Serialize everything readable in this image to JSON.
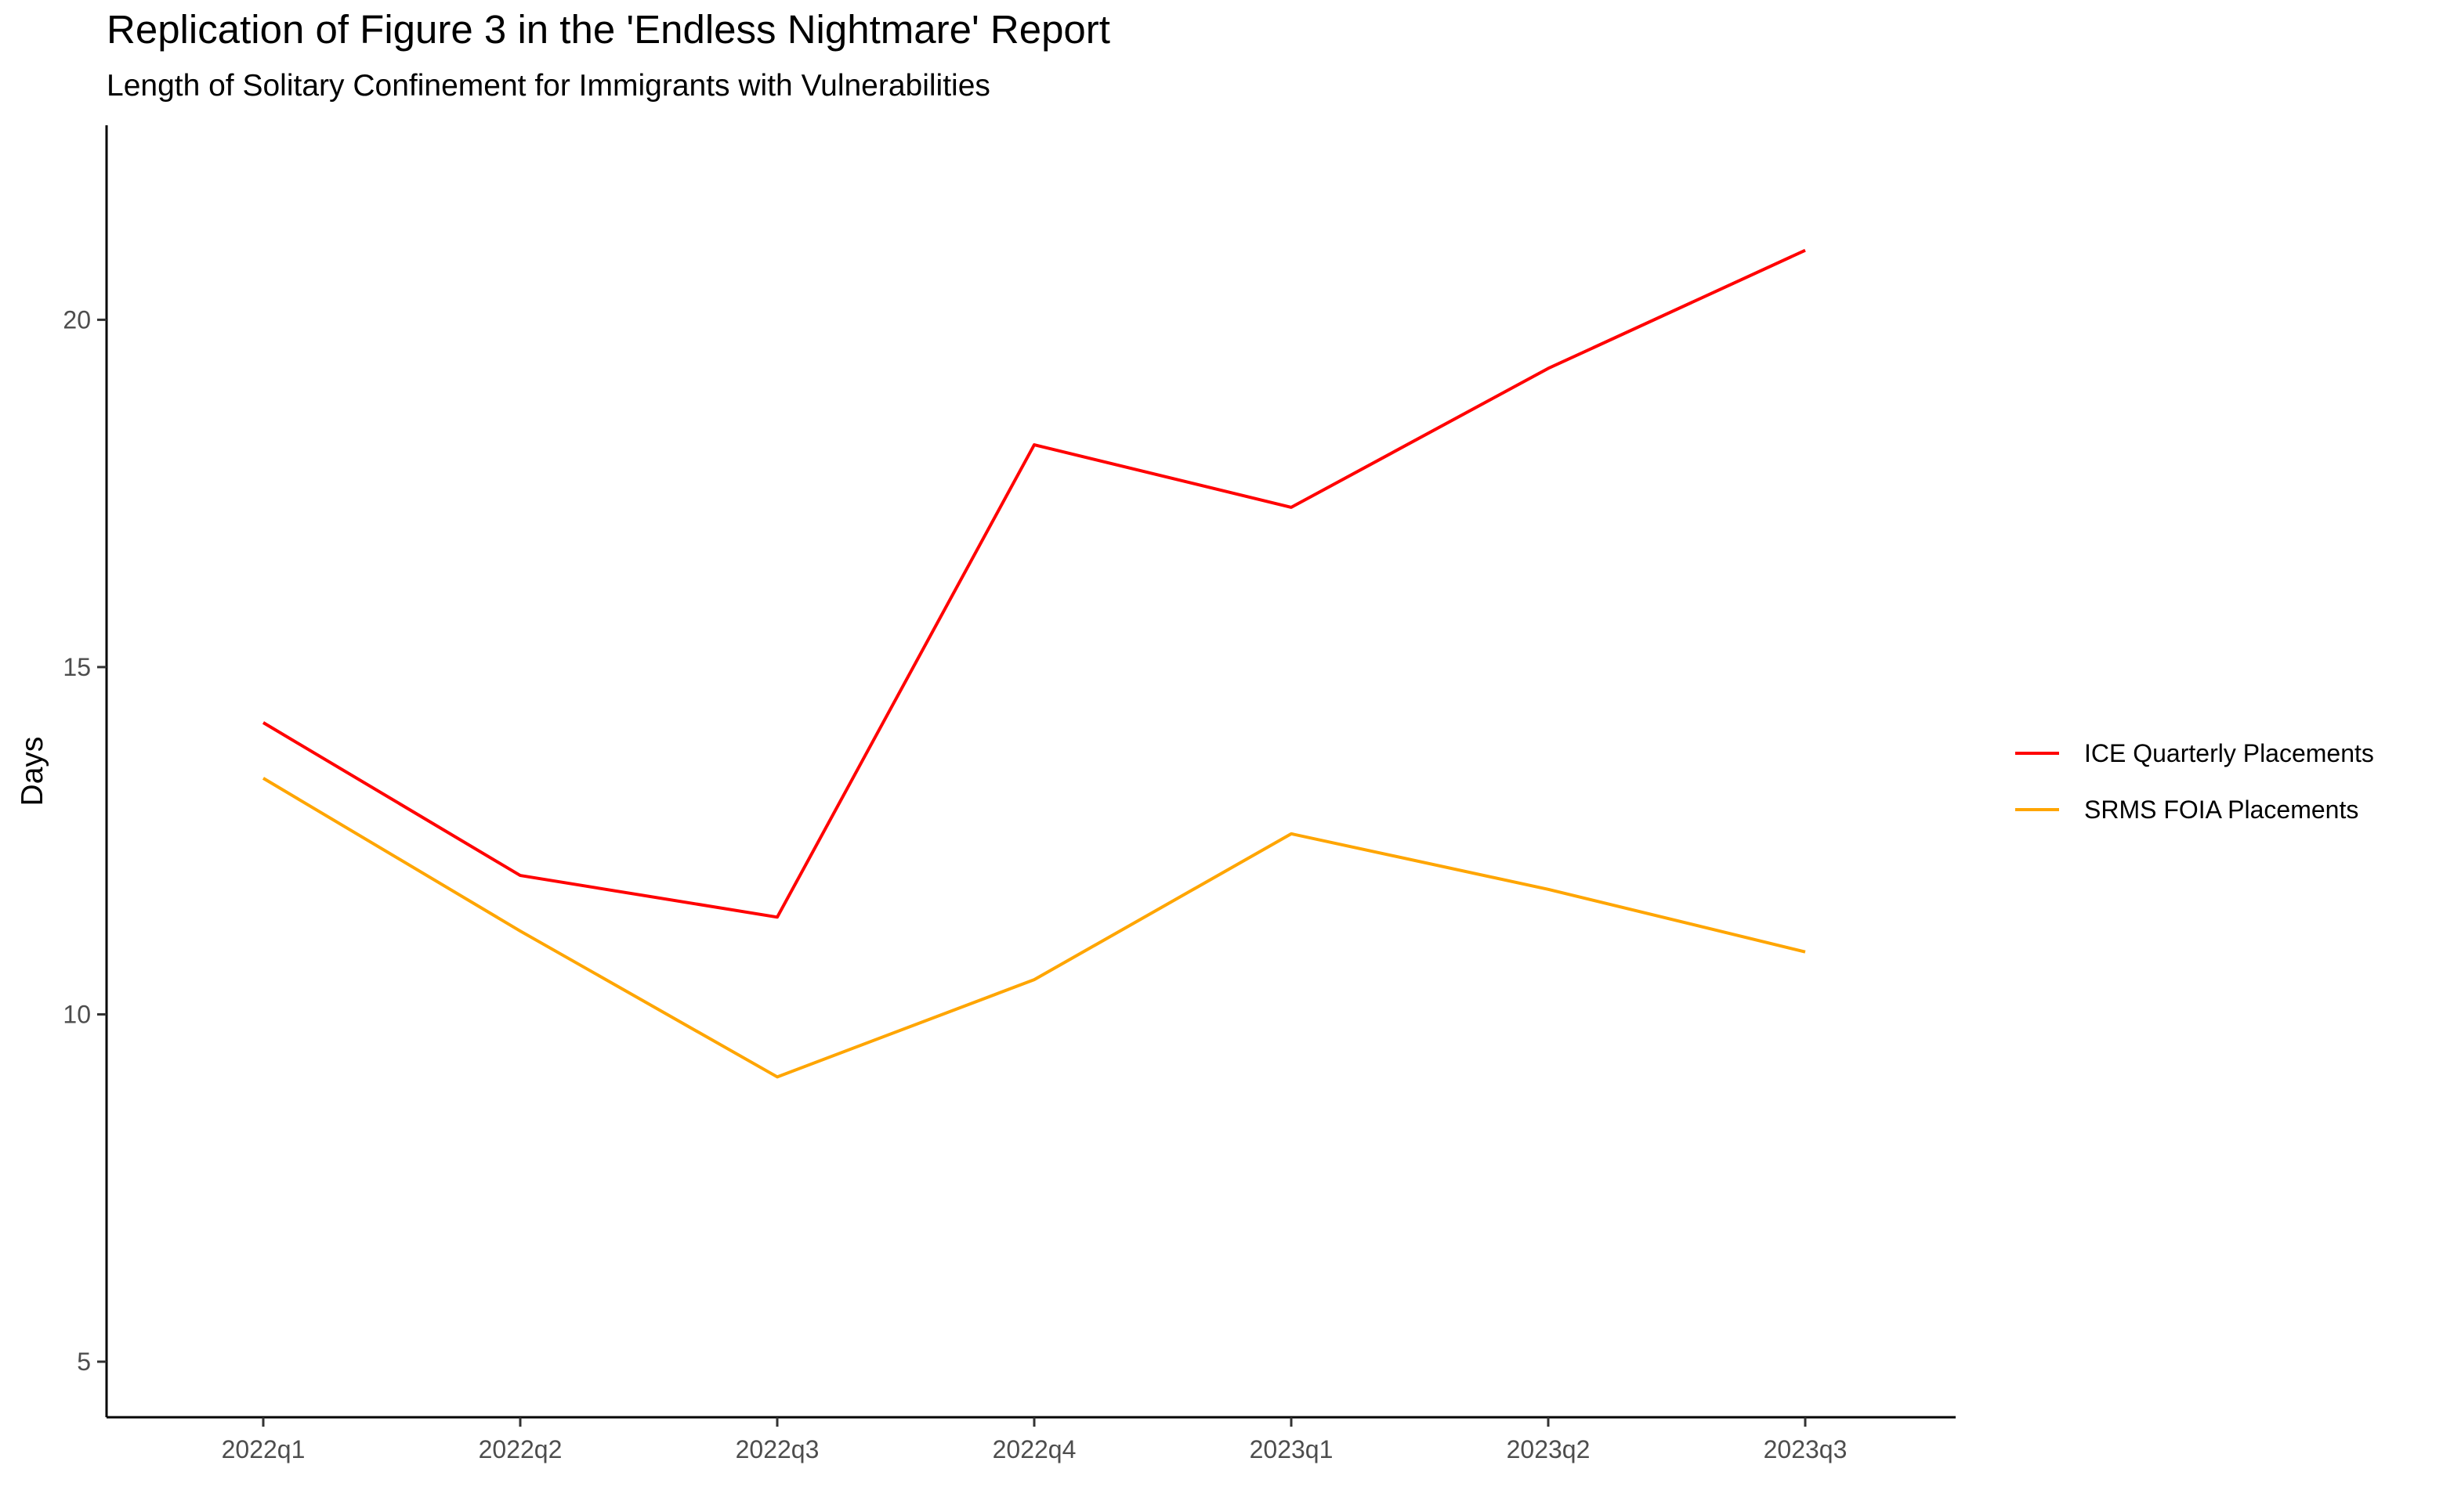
{
  "chart_data": {
    "type": "line",
    "title": "Replication of Figure 3 in the 'Endless Nightmare' Report",
    "subtitle": "Length of Solitary Confinement for Immigrants with Vulnerabilities",
    "xlabel": "",
    "ylabel": "Days",
    "categories": [
      "2022q1",
      "2022q2",
      "2022q3",
      "2022q4",
      "2023q1",
      "2023q2",
      "2023q3"
    ],
    "y_ticks": [
      5,
      10,
      15,
      20
    ],
    "y_tick_labels": [
      "5",
      "10",
      "15",
      "20"
    ],
    "ylim": [
      4.2,
      22.8
    ],
    "grid": false,
    "legend_position": "right",
    "series": [
      {
        "name": "ICE Quarterly Placements",
        "color": "#ff0000",
        "values": [
          14.2,
          12.0,
          11.4,
          18.2,
          17.3,
          19.3,
          21.0
        ]
      },
      {
        "name": "SRMS FOIA Placements",
        "color": "#ffa500",
        "values": [
          13.4,
          11.2,
          9.1,
          10.5,
          12.6,
          11.8,
          10.9
        ]
      }
    ]
  }
}
